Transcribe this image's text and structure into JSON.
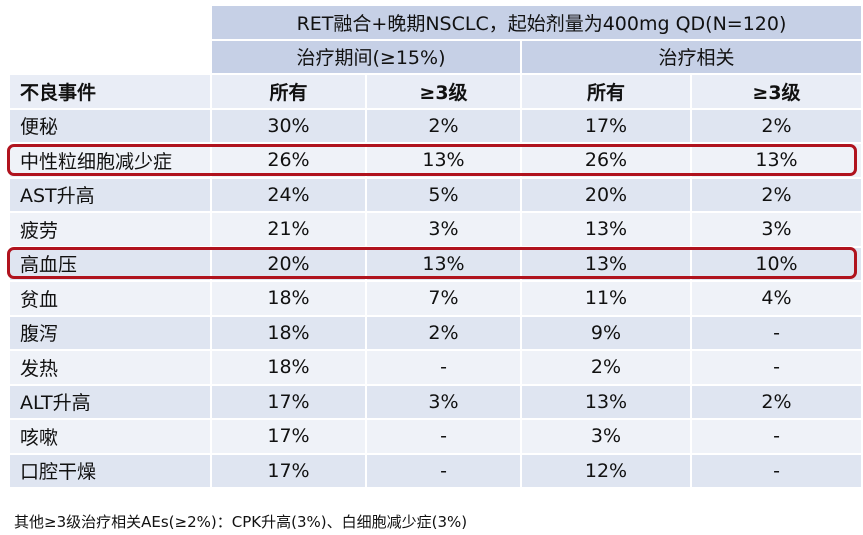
{
  "table": {
    "title": "RET融合+晚期NSCLC，起始剂量为400mg QD(N=120)",
    "group_1": "治疗期间(≥15%)",
    "group_2": "治疗相关",
    "columns": [
      "不良事件",
      "所有",
      "≥3级",
      "所有",
      "≥3级"
    ],
    "rows": [
      {
        "event": "便秘",
        "all_1": "30%",
        "g3_1": "2%",
        "all_2": "17%",
        "g3_2": "2%"
      },
      {
        "event": "中性粒细胞减少症",
        "all_1": "26%",
        "g3_1": "13%",
        "all_2": "26%",
        "g3_2": "13%"
      },
      {
        "event": "AST升高",
        "all_1": "24%",
        "g3_1": "5%",
        "all_2": "20%",
        "g3_2": "2%"
      },
      {
        "event": "疲劳",
        "all_1": "21%",
        "g3_1": "3%",
        "all_2": "13%",
        "g3_2": "3%"
      },
      {
        "event": "高血压",
        "all_1": "20%",
        "g3_1": "13%",
        "all_2": "13%",
        "g3_2": "10%"
      },
      {
        "event": "贫血",
        "all_1": "18%",
        "g3_1": "7%",
        "all_2": "11%",
        "g3_2": "4%"
      },
      {
        "event": "腹泻",
        "all_1": "18%",
        "g3_1": "2%",
        "all_2": "9%",
        "g3_2": "-"
      },
      {
        "event": "发热",
        "all_1": "18%",
        "g3_1": "-",
        "all_2": "2%",
        "g3_2": "-"
      },
      {
        "event": "ALT升高",
        "all_1": "17%",
        "g3_1": "3%",
        "all_2": "13%",
        "g3_2": "2%"
      },
      {
        "event": "咳嗽",
        "all_1": "17%",
        "g3_1": "-",
        "all_2": "3%",
        "g3_2": "-"
      },
      {
        "event": "口腔干燥",
        "all_1": "17%",
        "g3_1": "-",
        "all_2": "12%",
        "g3_2": "-"
      }
    ],
    "highlight_color": "#b0131e"
  },
  "footnote": "其他≥3级治疗相关AEs(≥2%)：CPK升高(3%)、白细胞减少症(3%)"
}
